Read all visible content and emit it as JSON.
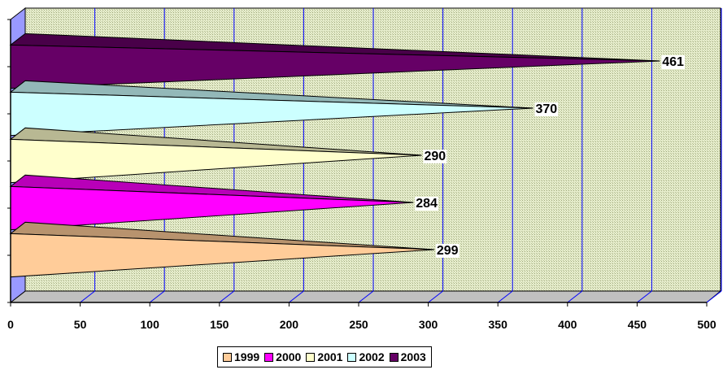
{
  "chart_data": {
    "type": "bar",
    "orientation": "horizontal",
    "shape": "3d-pyramid",
    "title": "",
    "xlabel": "",
    "ylabel": "",
    "xlim": [
      0,
      500
    ],
    "x_ticks": [
      0,
      50,
      100,
      150,
      200,
      250,
      300,
      350,
      400,
      450,
      500
    ],
    "grid": true,
    "legend_position": "bottom",
    "series": [
      {
        "name": "1999",
        "value": 299,
        "color": "#FFCC99",
        "label": "299"
      },
      {
        "name": "2000",
        "value": 284,
        "color": "#FF00FF",
        "label": "284"
      },
      {
        "name": "2001",
        "value": 290,
        "color": "#FFFFCC",
        "label": "290"
      },
      {
        "name": "2002",
        "value": 370,
        "color": "#CCFFFF",
        "label": "370"
      },
      {
        "name": "2003",
        "value": 461,
        "color": "#660066",
        "label": "461"
      }
    ],
    "colors": {
      "wall": "#D8E4B4",
      "wall_side": "#9999FF",
      "floor": "#C0C0C0",
      "gridline": "#0000FF"
    }
  }
}
